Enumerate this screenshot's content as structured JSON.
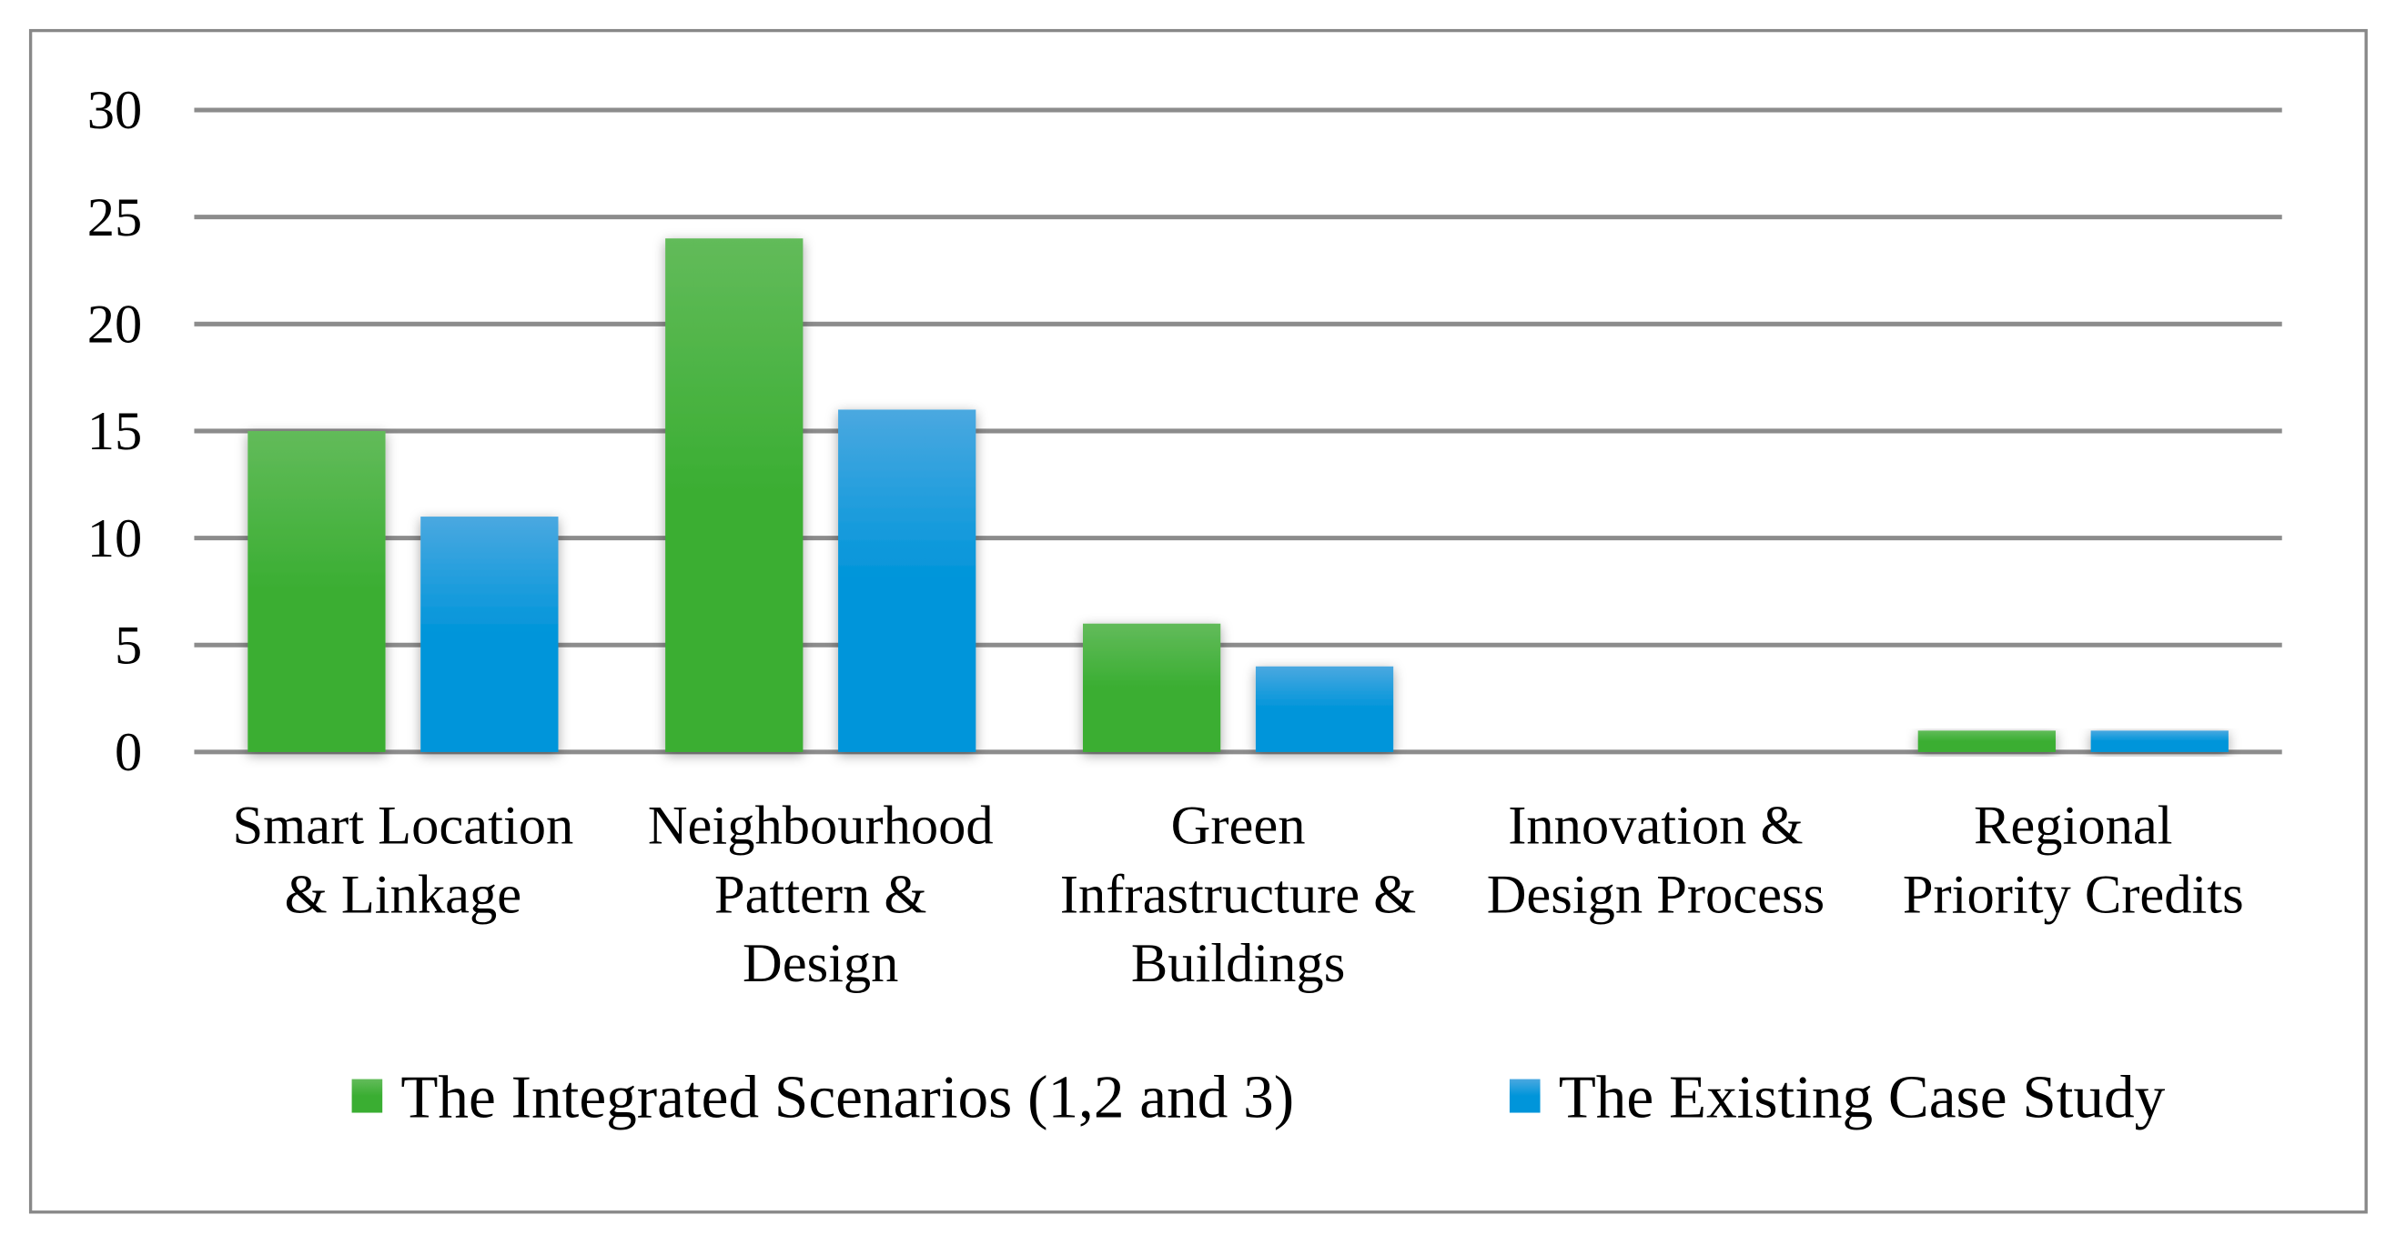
{
  "chart_data": {
    "type": "bar",
    "title": "",
    "xlabel": "",
    "ylabel": "",
    "ylim": [
      0,
      30
    ],
    "yticks": [
      0,
      5,
      10,
      15,
      20,
      25,
      30
    ],
    "grid": true,
    "legend_position": "bottom",
    "categories": [
      [
        "Smart Location",
        "& Linkage"
      ],
      [
        "Neighbourhood",
        "Pattern &",
        "Design"
      ],
      [
        "Green",
        "Infrastructure &",
        "Buildings"
      ],
      [
        "Innovation &",
        "Design Process"
      ],
      [
        "Regional",
        "Priority Credits"
      ]
    ],
    "series": [
      {
        "name": "The Integrated Scenarios (1,2 and 3)",
        "values": [
          15,
          24,
          6,
          0,
          1
        ],
        "color": "#3aae32",
        "color_top": "#62bb5a"
      },
      {
        "name": "The Existing Case Study",
        "values": [
          11,
          16,
          4,
          0,
          1
        ],
        "color": "#0095da",
        "color_top": "#4aa8e0"
      }
    ]
  }
}
